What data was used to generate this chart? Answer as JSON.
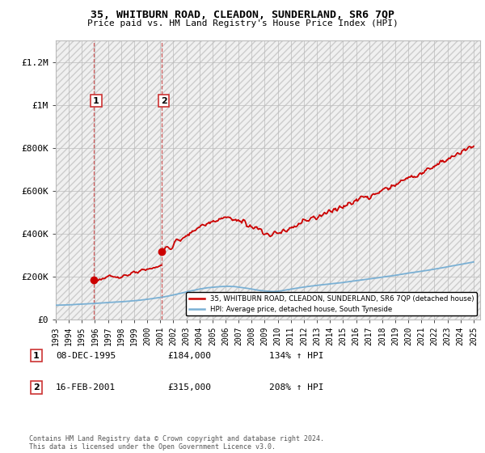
{
  "title_line1": "35, WHITBURN ROAD, CLEADON, SUNDERLAND, SR6 7QP",
  "title_line2": "Price paid vs. HM Land Registry's House Price Index (HPI)",
  "legend_label1": "35, WHITBURN ROAD, CLEADON, SUNDERLAND, SR6 7QP (detached house)",
  "legend_label2": "HPI: Average price, detached house, South Tyneside",
  "ann1_num": "1",
  "ann1_date": "08-DEC-1995",
  "ann1_price": "£184,000",
  "ann1_pct": "134% ↑ HPI",
  "ann1_x": 1995.94,
  "ann1_y": 184000,
  "ann2_num": "2",
  "ann2_date": "16-FEB-2001",
  "ann2_price": "£315,000",
  "ann2_pct": "208% ↑ HPI",
  "ann2_x": 2001.12,
  "ann2_y": 315000,
  "footer": "Contains HM Land Registry data © Crown copyright and database right 2024.\nThis data is licensed under the Open Government Licence v3.0.",
  "ylim": [
    0,
    1300000
  ],
  "yticks": [
    0,
    200000,
    400000,
    600000,
    800000,
    1000000,
    1200000
  ],
  "ytick_labels": [
    "£0",
    "£200K",
    "£400K",
    "£600K",
    "£800K",
    "£1M",
    "£1.2M"
  ],
  "xlim_start": 1993,
  "xlim_end": 2025.5,
  "red_color": "#cc0000",
  "blue_color": "#7ab0d4",
  "vline_color": "#cc4444",
  "box_edge_color": "#cc3333",
  "grid_color": "#bbbbbb",
  "hatch_fg": "#cccccc",
  "bg_color": "#ffffff"
}
